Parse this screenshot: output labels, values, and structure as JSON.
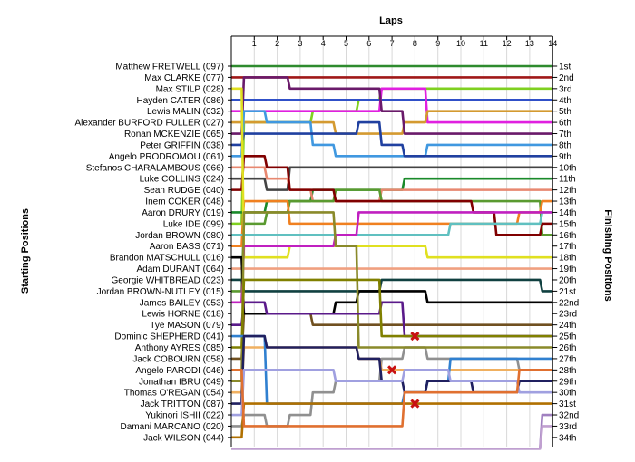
{
  "chart_data": {
    "type": "line",
    "title": "Laps",
    "ylabel_left": "Starting Positions",
    "ylabel_right": "Finishing Positions",
    "x_ticks": [
      "1",
      "2",
      "3",
      "4",
      "5",
      "6",
      "7",
      "8",
      "9",
      "10",
      "11",
      "12",
      "13",
      "14"
    ],
    "position_labels": [
      "1st",
      "2nd",
      "3rd",
      "4th",
      "5th",
      "6th",
      "7th",
      "8th",
      "9th",
      "10th",
      "11th",
      "12th",
      "13th",
      "14th",
      "15th",
      "16th",
      "17th",
      "18th",
      "19th",
      "20th",
      "21st",
      "22nd",
      "23rd",
      "24th",
      "25th",
      "26th",
      "27th",
      "28th",
      "29th",
      "30th",
      "31st",
      "32nd",
      "33rd",
      "34th"
    ],
    "drivers": [
      "Matthew FRETWELL (097)",
      "Max CLARKE (077)",
      "Max STILP (028)",
      "Hayden CATER (086)",
      "Lewis MALIN (032)",
      "Alexander BURFORD FULLER (027)",
      "Ronan MCKENZIE (065)",
      "Peter GRIFFIN (038)",
      "Angelo PRODROMOU (061)",
      "Stefanos CHARALAMBOUS (066)",
      "Luke COLLINS (024)",
      "Sean RUDGE (040)",
      "Inem COKER (048)",
      "Aaron DRURY (019)",
      "Luke IDE (099)",
      "Jordan BROWN (080)",
      "Aaron BASS (071)",
      "Brandon MATSCHULL (016)",
      "Adam DURANT (064)",
      "Georgie WHITBREAD (023)",
      "Jordan BROWN-NUTLEY (015)",
      "James BAILEY (053)",
      "Lewis HORNE (018)",
      "Tye MASON (079)",
      "Dominic SHEPHERD (041)",
      "Anthony AYRES (085)",
      "Jack COBOURN (058)",
      "Angelo PARODI (046)",
      "Jonathan IBRU (049)",
      "Thomas O'REGAN (054)",
      "Jack TRITTON (087)",
      "Yukinori ISHII (022)",
      "Damani MARCANO (020)",
      "Jack WILSON (044)"
    ],
    "x_range": [
      0,
      14
    ],
    "y_range": [
      1,
      34
    ],
    "grid": true,
    "series": [
      {
        "color": "#2e8b2e",
        "positions": [
          1,
          1,
          1,
          1,
          1,
          1,
          1,
          1,
          1,
          1,
          1,
          1,
          1,
          1,
          1
        ],
        "retired_after": null
      },
      {
        "color": "#a01818",
        "positions": [
          2,
          2,
          2,
          2,
          2,
          2,
          2,
          2,
          2,
          2,
          2,
          2,
          2,
          2,
          2
        ],
        "retired_after": null
      },
      {
        "color": "#7fd020",
        "positions": [
          15,
          6,
          6,
          6,
          5,
          5,
          4,
          3,
          3,
          3,
          3,
          3,
          3,
          3,
          3
        ],
        "retired_after": null
      },
      {
        "color": "#3050c8",
        "positions": [
          4,
          4,
          4,
          4,
          4,
          4,
          4,
          4,
          4,
          4,
          4,
          4,
          4,
          4,
          4
        ],
        "retired_after": null
      },
      {
        "color": "#e020e0",
        "positions": [
          5,
          5,
          5,
          5,
          5,
          5,
          5,
          3,
          3,
          6,
          6,
          6,
          6,
          6,
          6
        ],
        "retired_after": null
      },
      {
        "color": "#d49a30",
        "positions": [
          6,
          6,
          6,
          6,
          6,
          7,
          7,
          7,
          6,
          5,
          5,
          5,
          5,
          5,
          5
        ],
        "retired_after": null
      },
      {
        "color": "#6a1a6a",
        "positions": [
          7,
          2,
          2,
          3,
          3,
          3,
          3,
          5,
          7,
          7,
          7,
          7,
          7,
          7,
          7
        ],
        "retired_after": null
      },
      {
        "color": "#4098e0",
        "positions": [
          9,
          5,
          6,
          6,
          8,
          9,
          9,
          9,
          9,
          8,
          8,
          8,
          8,
          8,
          8
        ],
        "retired_after": null
      },
      {
        "color": "#2040a0",
        "positions": [
          8,
          7,
          7,
          7,
          7,
          7,
          6,
          8,
          9,
          9,
          9,
          9,
          9,
          9,
          9
        ],
        "retired_after": null
      },
      {
        "color": "#444444",
        "positions": [
          11,
          11,
          12,
          10,
          10,
          10,
          10,
          10,
          10,
          10,
          10,
          10,
          10,
          10,
          10
        ],
        "retired_after": null
      },
      {
        "color": "#1a8a2a",
        "positions": [
          14,
          14,
          13,
          13,
          12,
          12,
          12,
          12,
          11,
          11,
          11,
          11,
          11,
          11,
          11
        ],
        "retired_after": null
      },
      {
        "color": "#e88870",
        "positions": [
          10,
          10,
          11,
          12,
          13,
          13,
          13,
          12,
          12,
          12,
          12,
          12,
          12,
          12,
          12
        ],
        "retired_after": null
      },
      {
        "color": "#5a9a30",
        "positions": [
          21,
          15,
          14,
          13,
          13,
          12,
          12,
          13,
          13,
          13,
          13,
          13,
          13,
          13,
          16
        ],
        "retired_after": null
      },
      {
        "color": "#f08020",
        "positions": [
          17,
          13,
          13,
          15,
          15,
          15,
          15,
          15,
          15,
          15,
          15,
          15,
          15,
          14,
          13
        ],
        "retired_after": null
      },
      {
        "color": "#800000",
        "positions": [
          12,
          9,
          10,
          12,
          12,
          13,
          13,
          13,
          13,
          13,
          13,
          14,
          16,
          16,
          15
        ],
        "retired_after": null
      },
      {
        "color": "#e0e020",
        "positions": [
          3,
          18,
          18,
          17,
          17,
          17,
          17,
          17,
          17,
          18,
          18,
          18,
          18,
          18,
          18
        ],
        "retired_after": null
      },
      {
        "color": "#60c0c0",
        "positions": [
          16,
          16,
          16,
          16,
          16,
          16,
          16,
          16,
          16,
          16,
          15,
          15,
          15,
          15,
          14
        ],
        "retired_after": null
      },
      {
        "color": "#f0a080",
        "positions": [
          19,
          19,
          19,
          19,
          19,
          19,
          19,
          19,
          19,
          19,
          19,
          19,
          19,
          19,
          19
        ],
        "retired_after": null
      },
      {
        "color": "#909090",
        "positions": [
          33,
          32,
          33,
          32,
          30,
          29,
          29,
          27,
          26,
          27,
          27,
          27,
          27,
          28,
          28
        ],
        "retired_after": null
      },
      {
        "color": "#705020",
        "positions": [
          27,
          23,
          23,
          23,
          24,
          24,
          24,
          24,
          24,
          24,
          24,
          24,
          24,
          24,
          24
        ],
        "retired_after": null
      },
      {
        "color": "#104040",
        "positions": [
          20,
          21,
          21,
          21,
          21,
          21,
          21,
          20,
          20,
          20,
          20,
          20,
          20,
          20,
          21
        ],
        "retired_after": null
      },
      {
        "color": "#c020c0",
        "positions": [
          22,
          17,
          17,
          17,
          17,
          16,
          14,
          14,
          14,
          14,
          14,
          14,
          14,
          14,
          14
        ],
        "retired_after": null
      },
      {
        "color": "#000000",
        "positions": [
          18,
          23,
          23,
          23,
          23,
          22,
          21,
          21,
          21,
          22,
          22,
          22,
          22,
          22,
          22
        ],
        "retired_after": null
      },
      {
        "color": "#8a8a2a",
        "positions": [
          29,
          14,
          14,
          14,
          14,
          17,
          26,
          26,
          26,
          26,
          26,
          26,
          26,
          26,
          26
        ],
        "retired_after": null
      },
      {
        "color": "#5a1a8a",
        "positions": [
          24,
          22,
          23,
          23,
          23,
          23,
          23,
          22,
          25,
          25,
          25,
          25,
          25,
          25,
          25
        ],
        "retired_after": null
      },
      {
        "color": "#808000",
        "positions": [
          26,
          20,
          20,
          20,
          20,
          20,
          20,
          25,
          25,
          25,
          25,
          25,
          25,
          25,
          25
        ],
        "retired_after": 7
      },
      {
        "color": "#f0b060",
        "positions": [
          30,
          26,
          26,
          26,
          26,
          26,
          27,
          28,
          28,
          28,
          28,
          28,
          28,
          28,
          28
        ],
        "retired_after": null
      },
      {
        "color": "#3080d0",
        "positions": [
          25,
          25,
          31,
          31,
          31,
          31,
          31,
          31,
          30,
          29,
          27,
          27,
          27,
          27,
          27
        ],
        "retired_after": null
      },
      {
        "color": "#202060",
        "positions": [
          31,
          25,
          26,
          26,
          26,
          26,
          27,
          29,
          30,
          29,
          29,
          30,
          30,
          29,
          29
        ],
        "retired_after": null
      },
      {
        "color": "#a0a0e0",
        "positions": [
          32,
          28,
          28,
          28,
          28,
          29,
          29,
          29,
          28,
          28,
          29,
          29,
          29,
          30,
          30
        ],
        "retired_after": null
      },
      {
        "color": "#b07000",
        "positions": [
          34,
          31,
          31,
          31,
          31,
          31,
          31,
          31,
          31,
          31,
          31,
          31,
          31,
          31,
          31
        ],
        "retired_after": 8
      },
      {
        "color": "#e07030",
        "positions": [
          28,
          33,
          33,
          33,
          33,
          33,
          33,
          33,
          30,
          30,
          30,
          30,
          30,
          28,
          28
        ],
        "retired_after": null
      },
      {
        "color": "#a080c0",
        "positions": [
          35,
          35,
          35,
          35,
          35,
          35,
          35,
          35,
          35,
          35,
          35,
          35,
          35,
          35,
          32
        ],
        "retired_after": null
      },
      {
        "color": "#c0a0d0",
        "positions": [
          35,
          35,
          35,
          35,
          35,
          35,
          35,
          35,
          35,
          35,
          35,
          35,
          35,
          35,
          33
        ],
        "retired_after": null
      }
    ]
  },
  "retire_markers": [
    {
      "lap": 8,
      "position": 25
    },
    {
      "lap": 7,
      "position": 28
    },
    {
      "lap": 8,
      "position": 31
    }
  ]
}
